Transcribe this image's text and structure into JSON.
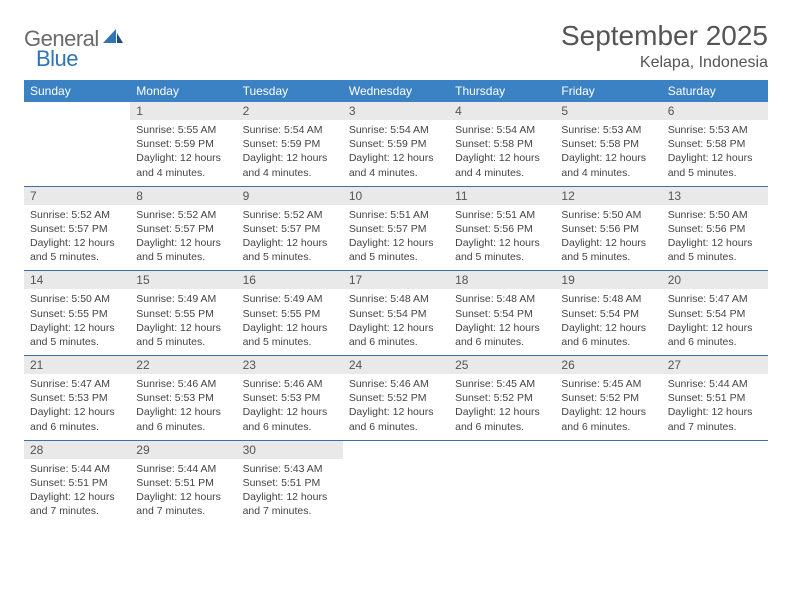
{
  "brand": {
    "general": "General",
    "blue": "Blue"
  },
  "title": "September 2025",
  "location": "Kelapa, Indonesia",
  "colors": {
    "header_bg": "#3b82c4",
    "header_text": "#ffffff",
    "daynum_bg": "#e9e9e9",
    "row_divider": "#3b6fa8",
    "body_text": "#444444",
    "title_text": "#555555",
    "logo_gray": "#6a6a6a",
    "logo_blue": "#2f74b5",
    "page_bg": "#ffffff"
  },
  "typography": {
    "title_fontsize": 28,
    "location_fontsize": 16,
    "dow_fontsize": 12,
    "daynum_fontsize": 12,
    "body_fontsize": 10.5
  },
  "days_of_week": [
    "Sunday",
    "Monday",
    "Tuesday",
    "Wednesday",
    "Thursday",
    "Friday",
    "Saturday"
  ],
  "weeks": [
    [
      null,
      {
        "n": "1",
        "sunrise": "5:55 AM",
        "sunset": "5:59 PM",
        "daylight": "12 hours and 4 minutes."
      },
      {
        "n": "2",
        "sunrise": "5:54 AM",
        "sunset": "5:59 PM",
        "daylight": "12 hours and 4 minutes."
      },
      {
        "n": "3",
        "sunrise": "5:54 AM",
        "sunset": "5:59 PM",
        "daylight": "12 hours and 4 minutes."
      },
      {
        "n": "4",
        "sunrise": "5:54 AM",
        "sunset": "5:58 PM",
        "daylight": "12 hours and 4 minutes."
      },
      {
        "n": "5",
        "sunrise": "5:53 AM",
        "sunset": "5:58 PM",
        "daylight": "12 hours and 4 minutes."
      },
      {
        "n": "6",
        "sunrise": "5:53 AM",
        "sunset": "5:58 PM",
        "daylight": "12 hours and 5 minutes."
      }
    ],
    [
      {
        "n": "7",
        "sunrise": "5:52 AM",
        "sunset": "5:57 PM",
        "daylight": "12 hours and 5 minutes."
      },
      {
        "n": "8",
        "sunrise": "5:52 AM",
        "sunset": "5:57 PM",
        "daylight": "12 hours and 5 minutes."
      },
      {
        "n": "9",
        "sunrise": "5:52 AM",
        "sunset": "5:57 PM",
        "daylight": "12 hours and 5 minutes."
      },
      {
        "n": "10",
        "sunrise": "5:51 AM",
        "sunset": "5:57 PM",
        "daylight": "12 hours and 5 minutes."
      },
      {
        "n": "11",
        "sunrise": "5:51 AM",
        "sunset": "5:56 PM",
        "daylight": "12 hours and 5 minutes."
      },
      {
        "n": "12",
        "sunrise": "5:50 AM",
        "sunset": "5:56 PM",
        "daylight": "12 hours and 5 minutes."
      },
      {
        "n": "13",
        "sunrise": "5:50 AM",
        "sunset": "5:56 PM",
        "daylight": "12 hours and 5 minutes."
      }
    ],
    [
      {
        "n": "14",
        "sunrise": "5:50 AM",
        "sunset": "5:55 PM",
        "daylight": "12 hours and 5 minutes."
      },
      {
        "n": "15",
        "sunrise": "5:49 AM",
        "sunset": "5:55 PM",
        "daylight": "12 hours and 5 minutes."
      },
      {
        "n": "16",
        "sunrise": "5:49 AM",
        "sunset": "5:55 PM",
        "daylight": "12 hours and 5 minutes."
      },
      {
        "n": "17",
        "sunrise": "5:48 AM",
        "sunset": "5:54 PM",
        "daylight": "12 hours and 6 minutes."
      },
      {
        "n": "18",
        "sunrise": "5:48 AM",
        "sunset": "5:54 PM",
        "daylight": "12 hours and 6 minutes."
      },
      {
        "n": "19",
        "sunrise": "5:48 AM",
        "sunset": "5:54 PM",
        "daylight": "12 hours and 6 minutes."
      },
      {
        "n": "20",
        "sunrise": "5:47 AM",
        "sunset": "5:54 PM",
        "daylight": "12 hours and 6 minutes."
      }
    ],
    [
      {
        "n": "21",
        "sunrise": "5:47 AM",
        "sunset": "5:53 PM",
        "daylight": "12 hours and 6 minutes."
      },
      {
        "n": "22",
        "sunrise": "5:46 AM",
        "sunset": "5:53 PM",
        "daylight": "12 hours and 6 minutes."
      },
      {
        "n": "23",
        "sunrise": "5:46 AM",
        "sunset": "5:53 PM",
        "daylight": "12 hours and 6 minutes."
      },
      {
        "n": "24",
        "sunrise": "5:46 AM",
        "sunset": "5:52 PM",
        "daylight": "12 hours and 6 minutes."
      },
      {
        "n": "25",
        "sunrise": "5:45 AM",
        "sunset": "5:52 PM",
        "daylight": "12 hours and 6 minutes."
      },
      {
        "n": "26",
        "sunrise": "5:45 AM",
        "sunset": "5:52 PM",
        "daylight": "12 hours and 6 minutes."
      },
      {
        "n": "27",
        "sunrise": "5:44 AM",
        "sunset": "5:51 PM",
        "daylight": "12 hours and 7 minutes."
      }
    ],
    [
      {
        "n": "28",
        "sunrise": "5:44 AM",
        "sunset": "5:51 PM",
        "daylight": "12 hours and 7 minutes."
      },
      {
        "n": "29",
        "sunrise": "5:44 AM",
        "sunset": "5:51 PM",
        "daylight": "12 hours and 7 minutes."
      },
      {
        "n": "30",
        "sunrise": "5:43 AM",
        "sunset": "5:51 PM",
        "daylight": "12 hours and 7 minutes."
      },
      null,
      null,
      null,
      null
    ]
  ],
  "labels": {
    "sunrise": "Sunrise:",
    "sunset": "Sunset:",
    "daylight": "Daylight:"
  }
}
